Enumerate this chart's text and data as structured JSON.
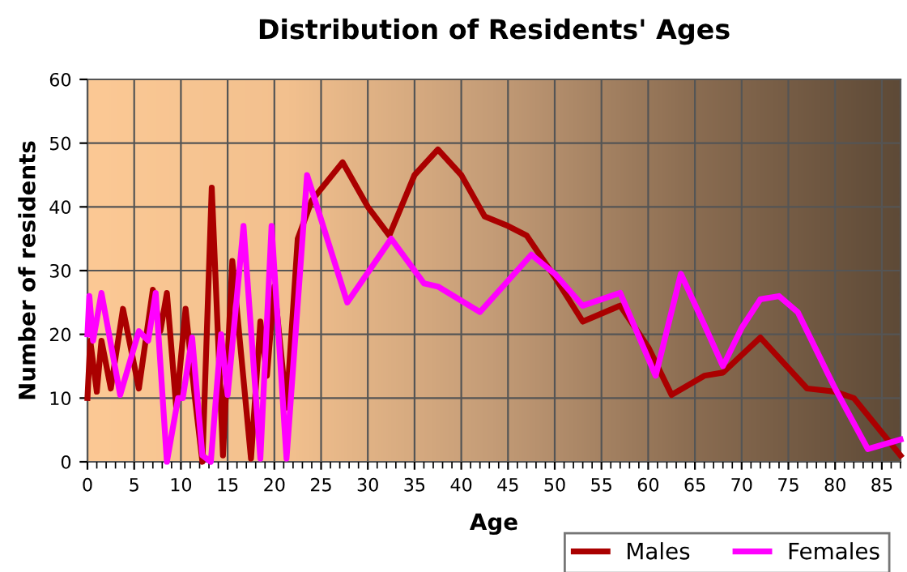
{
  "chart_data": {
    "type": "line",
    "title": "Distribution of Residents' Ages",
    "xlabel": "Age",
    "ylabel": "Number of residents",
    "xlim": [
      0,
      87
    ],
    "ylim": [
      0,
      60
    ],
    "xticks": [
      0,
      5,
      10,
      15,
      20,
      25,
      30,
      35,
      40,
      45,
      50,
      55,
      60,
      65,
      70,
      75,
      80,
      85
    ],
    "yticks": [
      0,
      10,
      20,
      30,
      40,
      50,
      60
    ],
    "grid": true,
    "legend": "bottom right",
    "marker": "none",
    "line_style": "solid",
    "series": [
      {
        "name": "Males",
        "color": "#aa0000",
        "x": [
          0,
          0.3,
          1,
          1.5,
          2.5,
          3.8,
          5.5,
          7,
          7.8,
          8.5,
          9.5,
          10.5,
          11.5,
          12.3,
          13.3,
          14.5,
          15.5,
          17.5,
          18.5,
          19.2,
          20,
          21.3,
          22.5,
          24,
          27.3,
          30,
          32.3,
          35,
          37.5,
          40,
          42.5,
          45,
          47,
          50,
          53,
          57,
          60,
          62.5,
          66,
          68,
          72,
          77,
          80,
          82,
          87
        ],
        "values": [
          10,
          19,
          11,
          19,
          11.5,
          24,
          11.5,
          27,
          20.5,
          26.5,
          8.5,
          24,
          10,
          0,
          43,
          1,
          31.5,
          0.5,
          22,
          13.5,
          27.5,
          8.5,
          35,
          41,
          47,
          40,
          35.5,
          45,
          49,
          45,
          38.5,
          37,
          35.5,
          29,
          22,
          24.5,
          18,
          10.5,
          13.5,
          14,
          19.5,
          11.5,
          11,
          10,
          1
        ]
      },
      {
        "name": "Females",
        "color": "#ff00ff",
        "x": [
          0,
          0.2,
          0.6,
          1.5,
          3.5,
          5.5,
          6.5,
          7.3,
          8.5,
          9.7,
          10.2,
          11.2,
          12.3,
          13.2,
          14.3,
          15,
          16.7,
          18.5,
          19.7,
          21.3,
          23.5,
          27.8,
          32.5,
          36,
          37.5,
          42,
          47.5,
          50,
          53,
          57,
          60.8,
          63.5,
          66,
          68,
          70,
          72,
          74,
          76,
          80,
          83.5,
          87
        ],
        "values": [
          20,
          26,
          19,
          26.5,
          10.5,
          20.5,
          19,
          26.5,
          0,
          10,
          10,
          19.5,
          1,
          0,
          20,
          10.5,
          37,
          0.5,
          37,
          0.5,
          45,
          25,
          35,
          28,
          27.5,
          23.5,
          32.5,
          29.5,
          24.5,
          26.5,
          13.5,
          29.5,
          21.5,
          15,
          21,
          25.5,
          26,
          23.5,
          11.5,
          2,
          3.5
        ]
      }
    ]
  }
}
